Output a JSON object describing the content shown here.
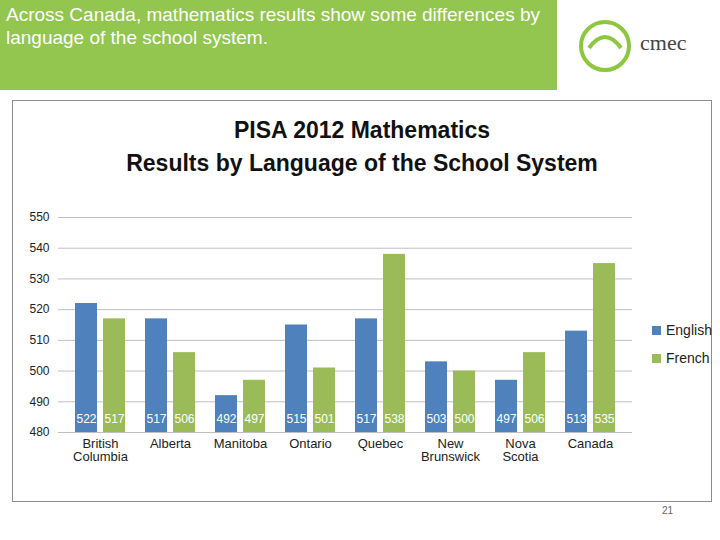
{
  "slide": {
    "heading": "Across Canada, mathematics results show some differences by language of the school system.",
    "logo": "cmec",
    "page_number": "21"
  },
  "chart_data": {
    "type": "bar",
    "title": "PISA 2012 Mathematics\nResults by Language of the School System",
    "categories": [
      "British Columbia",
      "Alberta",
      "Manitoba",
      "Ontario",
      "Quebec",
      "New Brunswick",
      "Nova Scotia",
      "Canada"
    ],
    "series": [
      {
        "name": "English",
        "color": "#4f81bd",
        "values": [
          522,
          517,
          492,
          515,
          517,
          503,
          497,
          513
        ]
      },
      {
        "name": "French",
        "color": "#9bbb59",
        "values": [
          517,
          506,
          497,
          501,
          538,
          500,
          506,
          535
        ]
      }
    ],
    "ylim": [
      480,
      550
    ],
    "yticks": [
      480,
      490,
      500,
      510,
      520,
      530,
      540,
      550
    ],
    "grid": true,
    "data_labels": true,
    "legend": "right"
  }
}
